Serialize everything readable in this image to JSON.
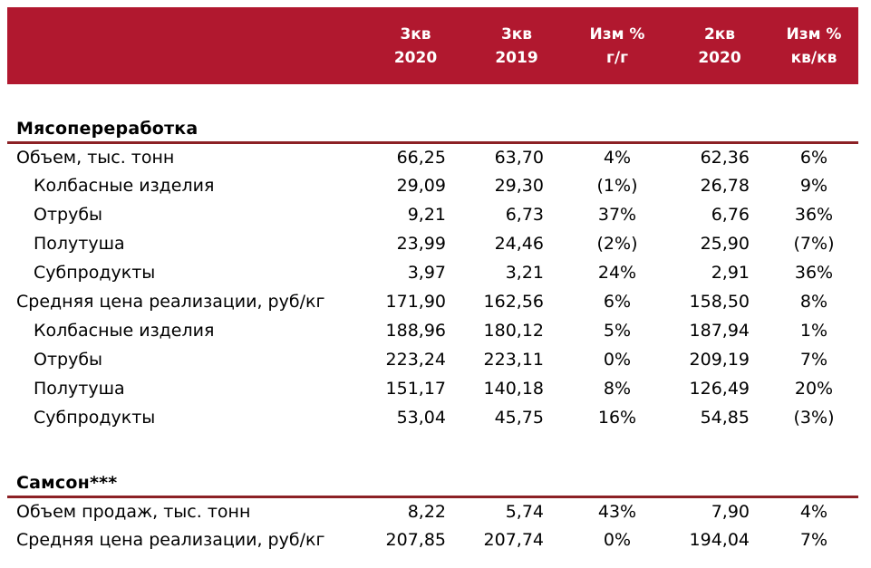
{
  "header": {
    "columns": [
      "3кв\n2020",
      "3кв\n2019",
      "Изм %\nг/г",
      "2кв\n2020",
      "Изм %\nкв/кв"
    ]
  },
  "sections": [
    {
      "title": "Мясопереработка",
      "rows": [
        {
          "label": "Объем, тыс. тонн",
          "values": [
            "66,25",
            "63,70",
            "4%",
            "62,36",
            "6%"
          ]
        },
        {
          "label": "Колбасные изделия",
          "values": [
            "29,09",
            "29,30",
            "(1%)",
            "26,78",
            "9%"
          ]
        },
        {
          "label": "Отрубы",
          "values": [
            "9,21",
            "6,73",
            "37%",
            "6,76",
            "36%"
          ]
        },
        {
          "label": "Полутуша",
          "values": [
            "23,99",
            "24,46",
            "(2%)",
            "25,90",
            "(7%)"
          ]
        },
        {
          "label": "Субпродукты",
          "values": [
            "3,97",
            "3,21",
            "24%",
            "2,91",
            "36%"
          ]
        },
        {
          "label": "Средняя цена реализации, руб/кг",
          "values": [
            "171,90",
            "162,56",
            "6%",
            "158,50",
            "8%"
          ]
        },
        {
          "label": "Колбасные изделия",
          "values": [
            "188,96",
            "180,12",
            "5%",
            "187,94",
            "1%"
          ]
        },
        {
          "label": "Отрубы",
          "values": [
            "223,24",
            "223,11",
            "0%",
            "209,19",
            "7%"
          ]
        },
        {
          "label": "Полутуша",
          "values": [
            "151,17",
            "140,18",
            "8%",
            "126,49",
            "20%"
          ]
        },
        {
          "label": "Субпродукты",
          "values": [
            "53,04",
            "45,75",
            "16%",
            "54,85",
            "(3%)"
          ]
        }
      ]
    },
    {
      "title": "Самсон***",
      "rows": [
        {
          "label": "Объем продаж, тыс. тонн",
          "values": [
            "8,22",
            "5,74",
            "43%",
            "7,90",
            "4%"
          ]
        },
        {
          "label": "Средняя цена реализации, руб/кг",
          "values": [
            "207,85",
            "207,74",
            "0%",
            "194,04",
            "7%"
          ]
        }
      ]
    }
  ],
  "colors": {
    "header_band": "#b1182f",
    "section_rule": "#8c2125",
    "header_text": "#ffffff",
    "body_text": "#000000",
    "background": "#ffffff"
  }
}
